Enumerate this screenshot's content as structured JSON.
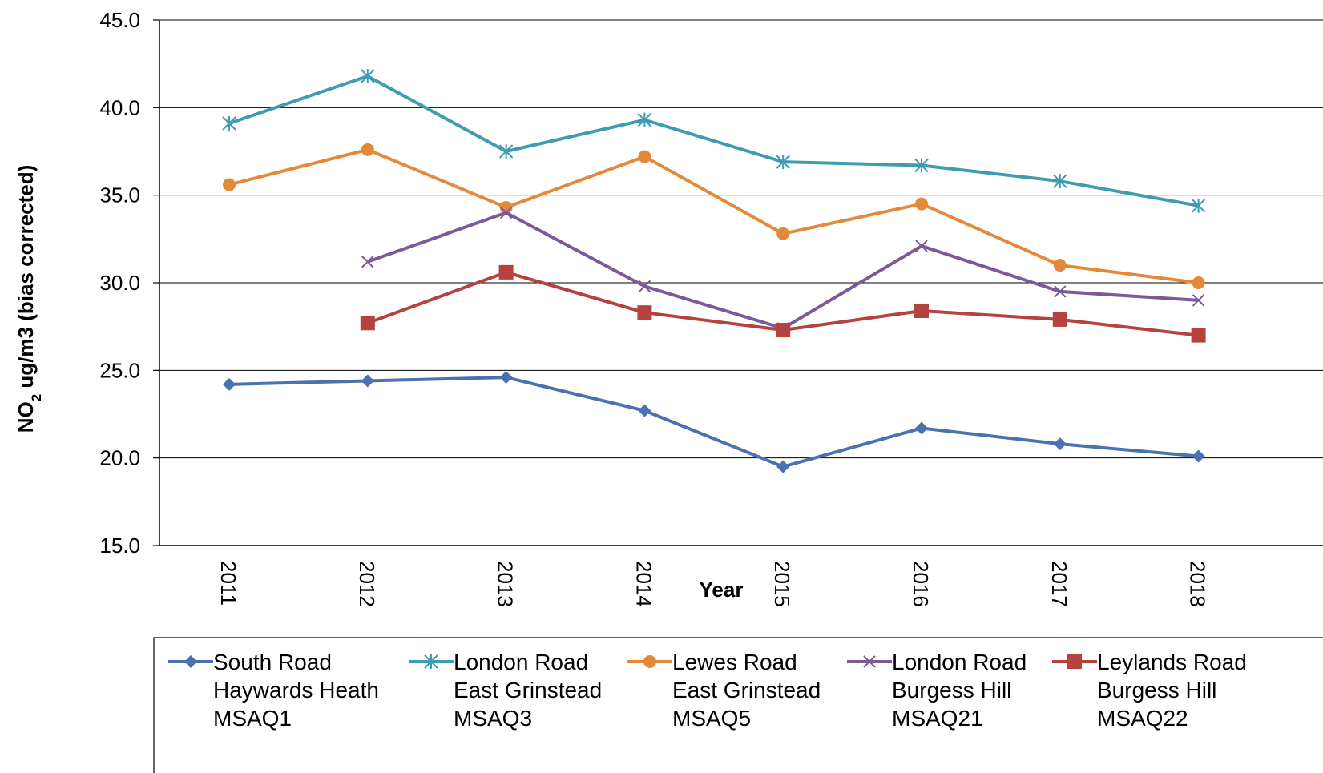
{
  "chart_data": {
    "type": "line",
    "title": "",
    "xlabel": "Year",
    "ylabel_main": "NO",
    "ylabel_sub": "2",
    "ylabel_rest": " ug/m3 (bias corrected)",
    "ylim": [
      15,
      45
    ],
    "ytick_step": 5,
    "yticks": [
      "15.0",
      "20.0",
      "25.0",
      "30.0",
      "35.0",
      "40.0",
      "45.0"
    ],
    "categories": [
      "2011",
      "2012",
      "2013",
      "2014",
      "2015",
      "2016",
      "2017",
      "2018"
    ],
    "grid": "horizontal",
    "legend_position": "bottom",
    "series": [
      {
        "name_lines": [
          "South Road",
          "Haywards Heath",
          "MSAQ1"
        ],
        "color": "#4a72b0",
        "marker": "diamond",
        "values": [
          24.2,
          24.4,
          24.6,
          22.7,
          19.5,
          21.7,
          20.8,
          20.1
        ]
      },
      {
        "name_lines": [
          "London Road",
          "East Grinstead",
          "MSAQ3"
        ],
        "color": "#3e9bb0",
        "marker": "asterisk",
        "values": [
          39.1,
          41.8,
          37.5,
          39.3,
          36.9,
          36.7,
          35.8,
          34.4
        ]
      },
      {
        "name_lines": [
          "Lewes Road",
          "East Grinstead",
          "MSAQ5"
        ],
        "color": "#e38a3a",
        "marker": "circle",
        "values": [
          35.6,
          37.6,
          34.3,
          37.2,
          32.8,
          34.5,
          31.0,
          30.0
        ]
      },
      {
        "name_lines": [
          "London Road",
          "Burgess Hill",
          "MSAQ21"
        ],
        "color": "#7b5a99",
        "marker": "x",
        "values": [
          null,
          31.2,
          34.0,
          29.8,
          27.4,
          32.1,
          29.5,
          29.0
        ]
      },
      {
        "name_lines": [
          "Leylands Road",
          "Burgess Hill",
          "MSAQ22"
        ],
        "color": "#b5423e",
        "marker": "square",
        "values": [
          null,
          27.7,
          30.6,
          28.3,
          27.3,
          28.4,
          27.9,
          27.0
        ]
      }
    ]
  }
}
